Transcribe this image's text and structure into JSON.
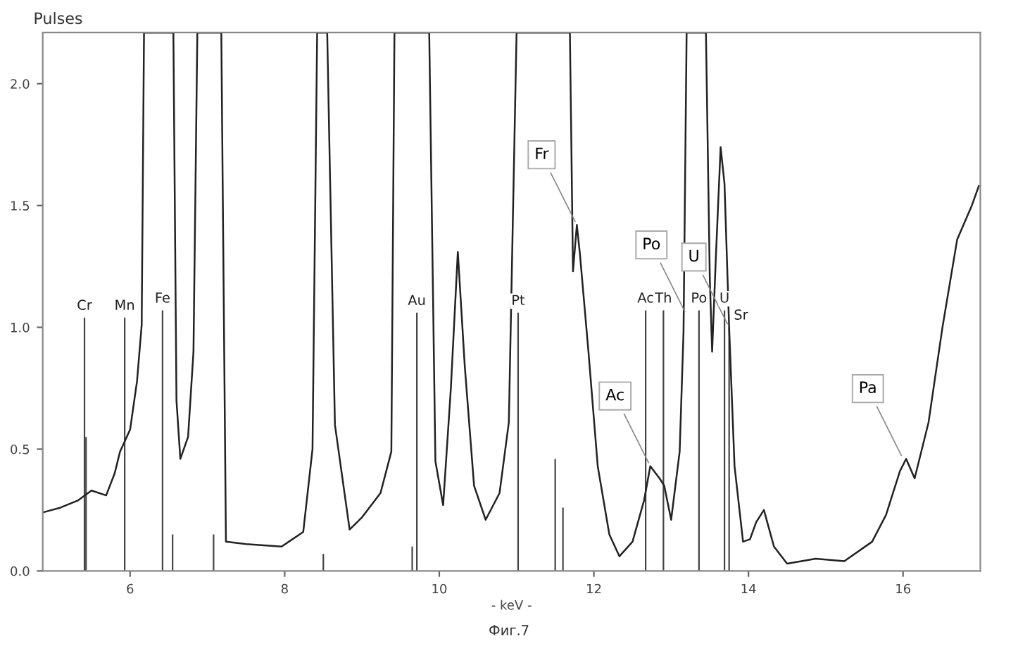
{
  "chart_data": {
    "type": "line",
    "ylabel": "Pulses",
    "xlabel": "- keV -",
    "xlim": [
      4.87,
      17.0
    ],
    "ylim": [
      0,
      2.21
    ],
    "xticks": [
      6,
      8,
      10,
      12,
      14,
      16
    ],
    "yticks": [
      {
        "value": 0,
        "label": "0.0"
      },
      {
        "value": 0.5,
        "label": "0.5"
      },
      {
        "value": 1,
        "label": "1.0"
      },
      {
        "value": 1.5,
        "label": "1.5"
      },
      {
        "value": 2,
        "label": "2.0"
      }
    ],
    "grid": false,
    "legend": false,
    "series": [
      {
        "color": "#222222",
        "x": [
          4.87,
          5.1,
          5.33,
          5.5,
          5.69,
          5.8,
          5.87,
          6.0,
          6.09,
          6.15,
          6.18,
          6.56,
          6.6,
          6.65,
          6.75,
          6.82,
          6.87,
          7.18,
          7.24,
          7.5,
          7.96,
          8.1,
          8.24,
          8.36,
          8.42,
          8.55,
          8.65,
          8.84,
          9.0,
          9.24,
          9.38,
          9.42,
          9.87,
          9.95,
          10.05,
          10.15,
          10.24,
          10.33,
          10.45,
          10.6,
          10.78,
          10.9,
          11.0,
          11.69,
          11.73,
          11.78,
          11.82,
          11.93,
          12.05,
          12.2,
          12.33,
          12.5,
          12.65,
          12.73,
          12.85,
          12.91,
          13.0,
          13.11,
          13.16,
          13.2,
          13.45,
          13.5,
          13.53,
          13.58,
          13.64,
          13.69,
          13.75,
          13.82,
          13.93,
          14.02,
          14.1,
          14.2,
          14.33,
          14.5,
          14.87,
          15.24,
          15.6,
          15.78,
          15.96,
          16.04,
          16.15,
          16.33,
          16.51,
          16.7,
          16.89,
          16.98
        ],
        "values": [
          0.24,
          0.26,
          0.29,
          0.33,
          0.31,
          0.4,
          0.49,
          0.58,
          0.78,
          1.01,
          2.21,
          2.21,
          0.7,
          0.46,
          0.55,
          0.9,
          2.21,
          2.21,
          0.12,
          0.11,
          0.1,
          0.13,
          0.16,
          0.5,
          2.21,
          2.21,
          0.6,
          0.17,
          0.22,
          0.32,
          0.49,
          2.21,
          2.21,
          0.45,
          0.27,
          0.75,
          1.31,
          0.84,
          0.35,
          0.21,
          0.32,
          0.61,
          2.21,
          2.21,
          1.23,
          1.42,
          1.3,
          0.9,
          0.43,
          0.15,
          0.06,
          0.12,
          0.29,
          0.43,
          0.38,
          0.35,
          0.21,
          0.49,
          0.98,
          2.21,
          2.21,
          1.2,
          0.9,
          1.3,
          1.74,
          1.59,
          1.0,
          0.43,
          0.12,
          0.13,
          0.2,
          0.25,
          0.1,
          0.03,
          0.05,
          0.04,
          0.12,
          0.23,
          0.41,
          0.46,
          0.38,
          0.61,
          1.0,
          1.36,
          1.5,
          1.58
        ]
      },
      {
        "type": "bar",
        "color": "#444444",
        "x": [
          5.41,
          5.43,
          5.93,
          6.42,
          6.55,
          7.08,
          8.5,
          9.65,
          9.71,
          11.02,
          11.5,
          11.6,
          12.67,
          12.9,
          13.36,
          13.69,
          13.75
        ],
        "values": [
          1.04,
          0.55,
          1.04,
          1.07,
          0.15,
          0.15,
          0.07,
          0.1,
          1.06,
          1.06,
          0.46,
          0.26,
          1.07,
          1.07,
          1.07,
          1.07,
          1.0
        ],
        "value_labels": [
          "Cr",
          null,
          "Mn",
          "Fe",
          null,
          null,
          null,
          null,
          "Au",
          "Pt",
          null,
          null,
          "Ac",
          "Th",
          "Po",
          "U",
          "Sr"
        ]
      }
    ],
    "annotations": [
      {
        "text": "Fr",
        "x": 11.78,
        "y": 1.42
      },
      {
        "text": "Po",
        "x": 13.2,
        "y": 1.05
      },
      {
        "text": "U",
        "x": 13.75,
        "y": 1.0
      },
      {
        "text": "Ac",
        "x": 12.73,
        "y": 0.43
      },
      {
        "text": "Pa",
        "x": 16.0,
        "y": 0.46
      },
      "Фиг.7"
    ]
  }
}
